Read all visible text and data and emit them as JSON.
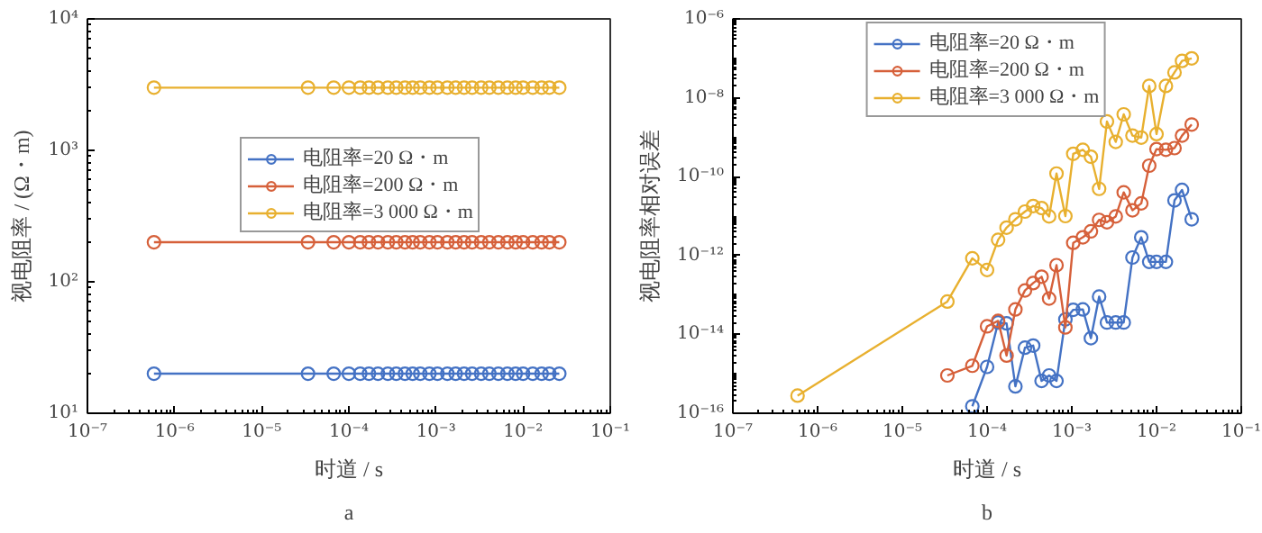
{
  "chart_data": [
    {
      "type": "line",
      "x": [
        5.8e-07,
        3.4e-05,
        6.7e-05,
        0.0001,
        0.000135,
        0.00017,
        0.000216,
        0.00028,
        0.00035,
        0.00044,
        0.00054,
        0.00066,
        0.00084,
        0.00104,
        0.00135,
        0.00168,
        0.0021,
        0.0026,
        0.0033,
        0.0041,
        0.0052,
        0.0066,
        0.0082,
        0.01,
        0.0129,
        0.0163,
        0.02,
        0.026
      ],
      "series": [
        {
          "name": "电阻率=20 Ω・m",
          "color": "#4472c4",
          "values": [
            20,
            20,
            20,
            20,
            20,
            20,
            20,
            20,
            20,
            20,
            20,
            20,
            20,
            20,
            20,
            20,
            20,
            20,
            20,
            20,
            20,
            20,
            20,
            20,
            20,
            20,
            20,
            20
          ]
        },
        {
          "name": "电阻率=200 Ω・m",
          "color": "#d6603a",
          "values": [
            200,
            200,
            200,
            200,
            200,
            200,
            200,
            200,
            200,
            200,
            200,
            200,
            200,
            200,
            200,
            200,
            200,
            200,
            200,
            200,
            200,
            200,
            200,
            200,
            200,
            200,
            200,
            200
          ]
        },
        {
          "name": "电阻率=3 000 Ω・m",
          "color": "#e8b02f",
          "values": [
            3000,
            3000,
            3000,
            3000,
            3000,
            3000,
            3000,
            3000,
            3000,
            3000,
            3000,
            3000,
            3000,
            3000,
            3000,
            3000,
            3000,
            3000,
            3000,
            3000,
            3000,
            3000,
            3000,
            3000,
            3000,
            3000,
            3000,
            3000
          ]
        }
      ],
      "xlim": [
        1e-07,
        0.1
      ],
      "ylim": [
        10,
        10000
      ],
      "log": "xy",
      "marker": "circle",
      "legend": "center",
      "grid": false,
      "xticks": [
        {
          "value": 1e-07,
          "label": "10⁻⁷"
        },
        {
          "value": 1e-06,
          "label": "10⁻⁶"
        },
        {
          "value": 1e-05,
          "label": "10⁻⁵"
        },
        {
          "value": 0.0001,
          "label": "10⁻⁴"
        },
        {
          "value": 0.001,
          "label": "10⁻³"
        },
        {
          "value": 0.01,
          "label": "10⁻²"
        },
        {
          "value": 0.1,
          "label": "10⁻¹"
        }
      ],
      "yticks": [
        {
          "value": 10,
          "label": "10¹"
        },
        {
          "value": 100,
          "label": "10²"
        },
        {
          "value": 1000,
          "label": "10³"
        },
        {
          "value": 10000,
          "label": "10⁴"
        }
      ],
      "xlabel": "时道 / s",
      "ylabel": "视电阻率 / (Ω・m)",
      "annotations": [
        "a"
      ]
    },
    {
      "type": "line",
      "x": [
        5.8e-07,
        3.4e-05,
        6.7e-05,
        0.0001,
        0.000135,
        0.00017,
        0.000216,
        0.00028,
        0.00035,
        0.00044,
        0.00054,
        0.00066,
        0.00084,
        0.00104,
        0.00135,
        0.00168,
        0.0021,
        0.0026,
        0.0033,
        0.0041,
        0.0052,
        0.0066,
        0.0082,
        0.01,
        0.0129,
        0.0163,
        0.02,
        0.026
      ],
      "series": [
        {
          "name": "电阻率=20 Ω・m",
          "color": "#4472c4",
          "values": [
            null,
            null,
            1.5e-16,
            1.5e-15,
            2e-14,
            1.9e-14,
            4.8e-16,
            4.6e-15,
            5.2e-15,
            6.6e-16,
            9.1e-16,
            6.6e-16,
            2.4e-14,
            4.2e-14,
            4.3e-14,
            8e-15,
            9.1e-14,
            2e-14,
            2e-14,
            2e-14,
            8.9e-13,
            2.9e-12,
            6.9e-13,
            6.9e-13,
            6.9e-13,
            2.5e-11,
            4.6e-11,
            8.3e-12
          ]
        },
        {
          "name": "电阻率=200 Ω・m",
          "color": "#d6603a",
          "values": [
            null,
            9.1e-16,
            1.6e-15,
            1.6e-14,
            2.2e-14,
            2.9e-15,
            4.3e-14,
            1.3e-13,
            2e-13,
            2.9e-13,
            8.1e-14,
            5.7e-13,
            1.5e-14,
            2.1e-12,
            2.9e-12,
            4.1e-12,
            8e-12,
            7e-12,
            9.8e-12,
            4e-11,
            1.4e-11,
            2.1e-11,
            1.9e-10,
            5e-10,
            4.8e-10,
            5.3e-10,
            1.1e-09,
            2.1e-09
          ]
        },
        {
          "name": "电阻率=3 000 Ω・m",
          "color": "#e8b02f",
          "values": [
            2.8e-16,
            6.8e-14,
            8.5e-13,
            4.3e-13,
            2.5e-12,
            5.1e-12,
            8.3e-12,
            1.3e-11,
            1.8e-11,
            1.6e-11,
            9.8e-12,
            1.2e-10,
            1e-11,
            3.8e-10,
            4.8e-10,
            3.2e-10,
            4.9e-11,
            2.5e-09,
            7.6e-10,
            3.8e-09,
            1.1e-09,
            9.8e-10,
            2e-08,
            1.2e-09,
            2e-08,
            4.4e-08,
            8.6e-08,
            1e-07
          ]
        }
      ],
      "xlim": [
        1e-07,
        0.1
      ],
      "ylim": [
        1e-16,
        1e-06
      ],
      "log": "xy",
      "marker": "circle",
      "legend": "top",
      "grid": false,
      "xticks": [
        {
          "value": 1e-07,
          "label": "10⁻⁷"
        },
        {
          "value": 1e-06,
          "label": "10⁻⁶"
        },
        {
          "value": 1e-05,
          "label": "10⁻⁵"
        },
        {
          "value": 0.0001,
          "label": "10⁻⁴"
        },
        {
          "value": 0.001,
          "label": "10⁻³"
        },
        {
          "value": 0.01,
          "label": "10⁻²"
        },
        {
          "value": 0.1,
          "label": "10⁻¹"
        }
      ],
      "yticks": [
        {
          "value": 1e-16,
          "label": "10⁻¹⁶"
        },
        {
          "value": 1e-14,
          "label": "10⁻¹⁴"
        },
        {
          "value": 1e-12,
          "label": "10⁻¹²"
        },
        {
          "value": 1e-10,
          "label": "10⁻¹⁰"
        },
        {
          "value": 1e-08,
          "label": "10⁻⁸"
        },
        {
          "value": 1e-06,
          "label": "10⁻⁶"
        }
      ],
      "xlabel": "时道 / s",
      "ylabel": "视电阻率相对误差",
      "annotations": [
        "b"
      ]
    }
  ]
}
